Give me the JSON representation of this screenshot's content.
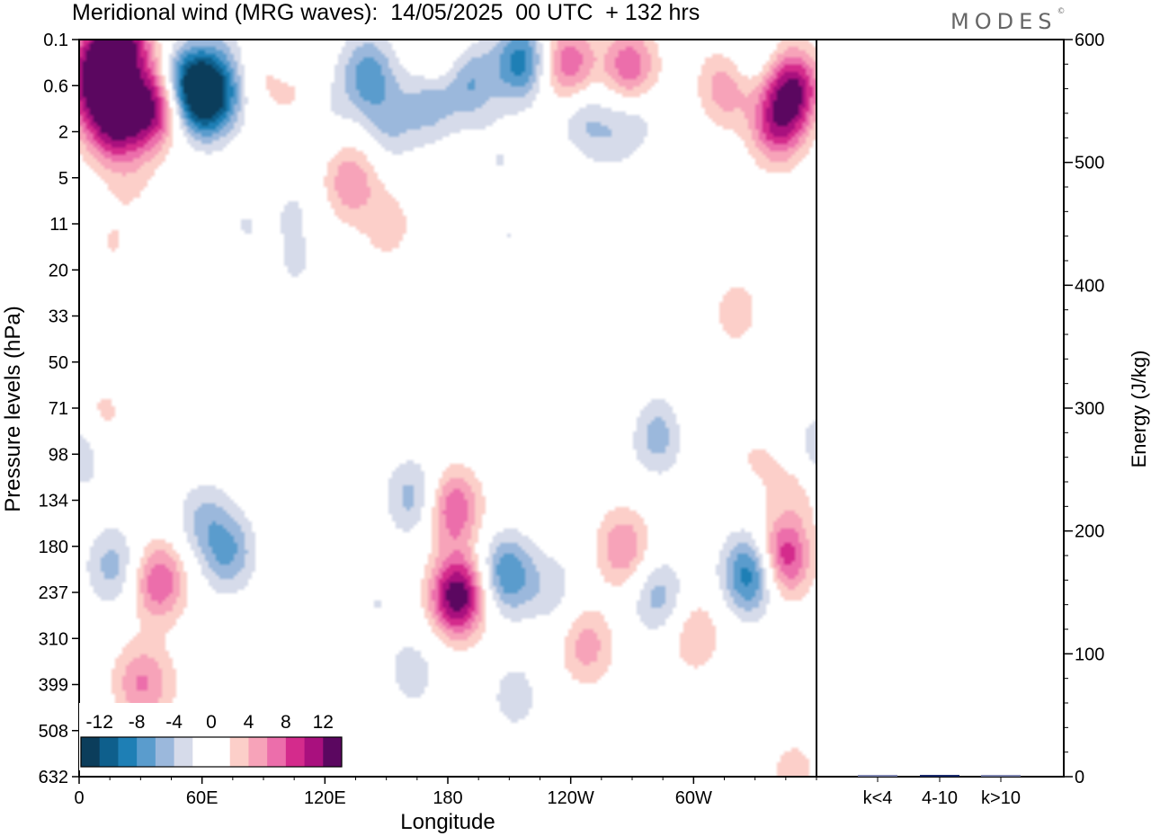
{
  "title": "Meridional wind (MRG waves):  14/05/2025  00 UTC  + 132 hrs",
  "logo": "MODES",
  "chart_data": [
    {
      "type": "heatmap",
      "title": "Meridional wind (MRG waves):  14/05/2025  00 UTC  + 132 hrs",
      "xlabel": "Longitude",
      "ylabel": "Pressure levels (hPa)",
      "x_ticks": [
        "0",
        "60E",
        "120E",
        "180",
        "120W",
        "60W"
      ],
      "x_tick_degrees": [
        0,
        60,
        120,
        180,
        240,
        300
      ],
      "xlim": [
        0,
        360
      ],
      "y_ticks": [
        "0.1",
        "0.6",
        "2",
        "5",
        "11",
        "20",
        "33",
        "50",
        "71",
        "98",
        "134",
        "180",
        "237",
        "310",
        "399",
        "508",
        "632"
      ],
      "colorbar": {
        "labels": [
          "-12",
          "-8",
          "-4",
          "0",
          "4",
          "8",
          "12"
        ],
        "label_values": [
          -12,
          -8,
          -4,
          0,
          4,
          8,
          12
        ],
        "levels": [
          -14,
          -12,
          -10,
          -8,
          -6,
          -4,
          -2,
          0,
          2,
          4,
          6,
          8,
          10,
          12,
          14
        ],
        "colors": [
          "#0b3d5b",
          "#0e5f8c",
          "#1e7fb5",
          "#5a9ccd",
          "#9bb8dc",
          "#d6dbea",
          "#ffffff",
          "#ffffff",
          "#fccfc9",
          "#f7a3b9",
          "#ec6eab",
          "#d42b8c",
          "#a9107e",
          "#5b0760"
        ]
      },
      "features": [
        {
          "lon": 8,
          "p": 0.15,
          "v": 6
        },
        {
          "lon": 18,
          "p": 0.14,
          "v": 8
        },
        {
          "lon": 25,
          "p": 0.12,
          "v": 5
        },
        {
          "lon": 5,
          "p": 0.6,
          "v": 9
        },
        {
          "lon": 15,
          "p": 1.6,
          "v": 10
        },
        {
          "lon": 30,
          "p": 1.1,
          "v": 9
        },
        {
          "lon": 40,
          "p": 0.9,
          "v": 6
        },
        {
          "lon": 52,
          "p": 0.5,
          "v": -9
        },
        {
          "lon": 60,
          "p": 0.8,
          "v": -10
        },
        {
          "lon": 68,
          "p": 0.7,
          "v": -5
        },
        {
          "lon": 70,
          "p": 0.15,
          "v": -2
        },
        {
          "lon": 90,
          "p": 0.3,
          "v": 3
        },
        {
          "lon": 105,
          "p": 0.6,
          "v": 3
        },
        {
          "lon": 100,
          "p": 0.18,
          "v": -3
        },
        {
          "lon": 120,
          "p": 1.1,
          "v": -2
        },
        {
          "lon": 140,
          "p": 0.35,
          "v": -7
        },
        {
          "lon": 150,
          "p": 1.6,
          "v": -4
        },
        {
          "lon": 170,
          "p": 0.9,
          "v": -5
        },
        {
          "lon": 190,
          "p": 0.5,
          "v": -6
        },
        {
          "lon": 215,
          "p": 0.22,
          "v": -9
        },
        {
          "lon": 175,
          "p": 0.2,
          "v": 3
        },
        {
          "lon": 238,
          "p": 0.25,
          "v": 8
        },
        {
          "lon": 268,
          "p": 0.28,
          "v": 8
        },
        {
          "lon": 315,
          "p": 0.55,
          "v": 6
        },
        {
          "lon": 348,
          "p": 0.6,
          "v": 11
        },
        {
          "lon": 340,
          "p": 1.6,
          "v": 9
        },
        {
          "lon": 325,
          "p": 0.18,
          "v": -3
        },
        {
          "lon": 245,
          "p": 1.4,
          "v": -4
        },
        {
          "lon": 270,
          "p": 1.3,
          "v": -3
        },
        {
          "lon": 260,
          "p": 2.2,
          "v": -2
        },
        {
          "lon": 205,
          "p": 3.5,
          "v": -2
        },
        {
          "lon": 130,
          "p": 5.5,
          "v": 4
        },
        {
          "lon": 150,
          "p": 11,
          "v": 3
        },
        {
          "lon": 230,
          "p": 5,
          "v": 2
        },
        {
          "lon": 280,
          "p": 7,
          "v": 2
        },
        {
          "lon": 210,
          "p": 13,
          "v": -2
        },
        {
          "lon": 105,
          "p": 8,
          "v": -2
        },
        {
          "lon": 80,
          "p": 11,
          "v": -2
        },
        {
          "lon": 105,
          "p": 19,
          "v": -2
        },
        {
          "lon": 262,
          "p": 33,
          "v": -2
        },
        {
          "lon": 320,
          "p": 31,
          "v": 3
        },
        {
          "lon": 215,
          "p": 36,
          "v": 2
        },
        {
          "lon": 135,
          "p": 4.2,
          "v": 2
        },
        {
          "lon": 25,
          "p": 5,
          "v": 2
        },
        {
          "lon": 15,
          "p": 14,
          "v": 2
        },
        {
          "lon": 50,
          "p": 55,
          "v": 2
        },
        {
          "lon": 10,
          "p": 75,
          "v": 3
        },
        {
          "lon": 0,
          "p": 95,
          "v": -4
        },
        {
          "lon": 360,
          "p": 95,
          "v": -4
        },
        {
          "lon": 8,
          "p": 600,
          "v": 0
        },
        {
          "lon": 16,
          "p": 200,
          "v": -5
        },
        {
          "lon": 38,
          "p": 220,
          "v": 8
        },
        {
          "lon": 28,
          "p": 390,
          "v": 5
        },
        {
          "lon": 60,
          "p": 150,
          "v": -4
        },
        {
          "lon": 72,
          "p": 185,
          "v": -6
        },
        {
          "lon": 80,
          "p": 450,
          "v": -2
        },
        {
          "lon": 145,
          "p": 250,
          "v": -2
        },
        {
          "lon": 162,
          "p": 130,
          "v": -5
        },
        {
          "lon": 162,
          "p": 370,
          "v": -3
        },
        {
          "lon": 184,
          "p": 240,
          "v": 14
        },
        {
          "lon": 182,
          "p": 140,
          "v": 8
        },
        {
          "lon": 208,
          "p": 210,
          "v": -8
        },
        {
          "lon": 212,
          "p": 420,
          "v": -3
        },
        {
          "lon": 230,
          "p": 230,
          "v": -3
        },
        {
          "lon": 230,
          "p": 120,
          "v": 2
        },
        {
          "lon": 247,
          "p": 320,
          "v": 5
        },
        {
          "lon": 265,
          "p": 180,
          "v": 6
        },
        {
          "lon": 282,
          "p": 240,
          "v": -5
        },
        {
          "lon": 282,
          "p": 85,
          "v": -5
        },
        {
          "lon": 300,
          "p": 300,
          "v": 4
        },
        {
          "lon": 305,
          "p": 80,
          "v": 2
        },
        {
          "lon": 327,
          "p": 210,
          "v": -10
        },
        {
          "lon": 343,
          "p": 190,
          "v": 10
        },
        {
          "lon": 350,
          "p": 120,
          "v": 3
        },
        {
          "lon": 330,
          "p": 100,
          "v": 2
        },
        {
          "lon": 348,
          "p": 620,
          "v": 3
        },
        {
          "lon": 292,
          "p": 580,
          "v": -2
        },
        {
          "lon": 258,
          "p": 60,
          "v": 2
        },
        {
          "lon": 38,
          "p": 400,
          "v": 2
        }
      ]
    },
    {
      "type": "bar",
      "ylabel": "Energy (J/kg)",
      "ylim": [
        0,
        600
      ],
      "y_ticks": [
        "0",
        "100",
        "200",
        "300",
        "400",
        "500",
        "600"
      ],
      "categories": [
        "k<4",
        "4-10",
        "k>10"
      ],
      "values": [
        0,
        1,
        0
      ]
    }
  ]
}
